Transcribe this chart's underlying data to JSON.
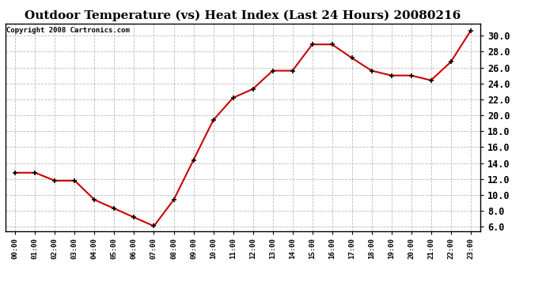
{
  "title": "Outdoor Temperature (vs) Heat Index (Last 24 Hours) 20080216",
  "copyright": "Copyright 2008 Cartronics.com",
  "x_labels": [
    "00:00",
    "01:00",
    "02:00",
    "03:00",
    "04:00",
    "05:00",
    "06:00",
    "07:00",
    "08:00",
    "09:00",
    "10:00",
    "11:00",
    "12:00",
    "13:00",
    "14:00",
    "15:00",
    "16:00",
    "17:00",
    "18:00",
    "19:00",
    "20:00",
    "21:00",
    "22:00",
    "23:00"
  ],
  "y_values": [
    12.8,
    12.8,
    11.8,
    11.8,
    9.4,
    8.3,
    7.2,
    6.1,
    9.4,
    14.4,
    19.4,
    22.2,
    23.3,
    25.6,
    25.6,
    28.9,
    28.9,
    27.2,
    25.6,
    25.0,
    25.0,
    24.4,
    26.7,
    30.6
  ],
  "line_color": "#cc0000",
  "marker": "+",
  "marker_color": "#000000",
  "marker_size": 5,
  "ylim": [
    5.5,
    31.5
  ],
  "ytick_values": [
    6.0,
    8.0,
    10.0,
    12.0,
    14.0,
    16.0,
    18.0,
    20.0,
    22.0,
    24.0,
    26.0,
    28.0,
    30.0
  ],
  "background_color": "#ffffff",
  "plot_bg_color": "#ffffff",
  "grid_color": "#bbbbbb",
  "title_fontsize": 11,
  "copyright_fontsize": 6.5,
  "tick_fontsize": 6.5,
  "ytick_fontsize": 8.5,
  "linewidth": 1.5
}
